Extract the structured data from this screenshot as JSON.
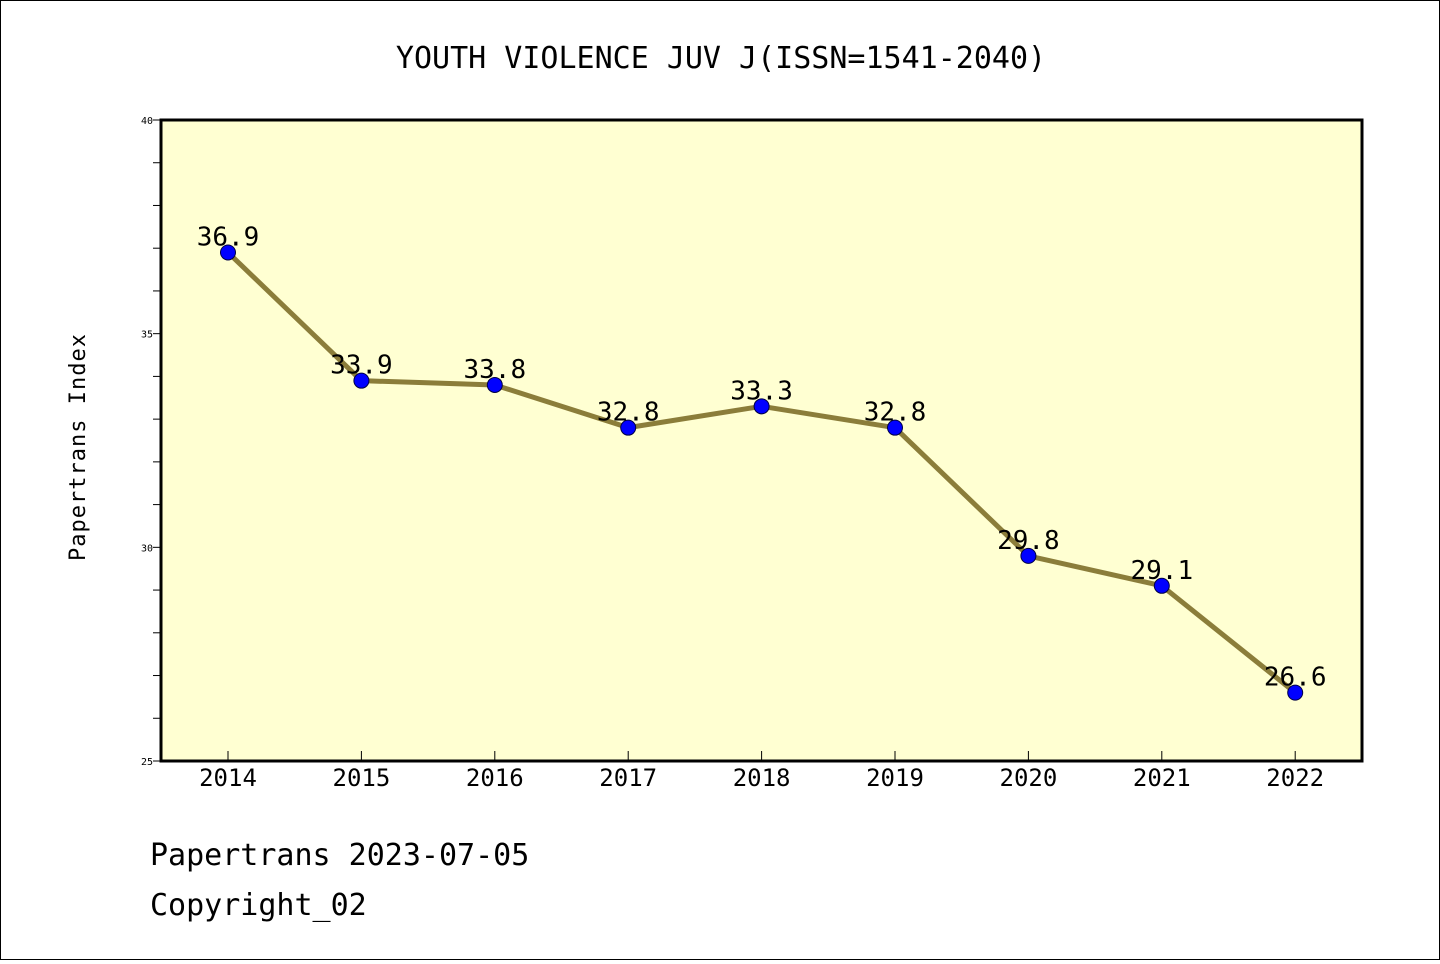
{
  "chart_data": {
    "type": "line",
    "title": "YOUTH VIOLENCE JUV J(ISSN=1541-2040)",
    "xlabel": "",
    "ylabel": "Papertrans Index",
    "x": [
      "2014",
      "2015",
      "2016",
      "2017",
      "2018",
      "2019",
      "2020",
      "2021",
      "2022"
    ],
    "values": [
      36.9,
      33.9,
      33.8,
      32.8,
      33.3,
      32.8,
      29.8,
      29.1,
      26.6
    ],
    "data_labels": [
      "36.9",
      "33.9",
      "33.8",
      "32.8",
      "33.3",
      "32.8",
      "29.8",
      "29.1",
      "26.6"
    ],
    "ylim": [
      25,
      40
    ],
    "yticks": [
      "25",
      "30",
      "35",
      "40"
    ],
    "grid": false,
    "legend": "none",
    "colors": {
      "plot_background": "#ffffd2",
      "line": "#8b7d3a",
      "marker": "#0000ff"
    }
  },
  "footer": {
    "date_text": "Papertrans 2023-07-05",
    "copyright_text": "Copyright_02"
  }
}
